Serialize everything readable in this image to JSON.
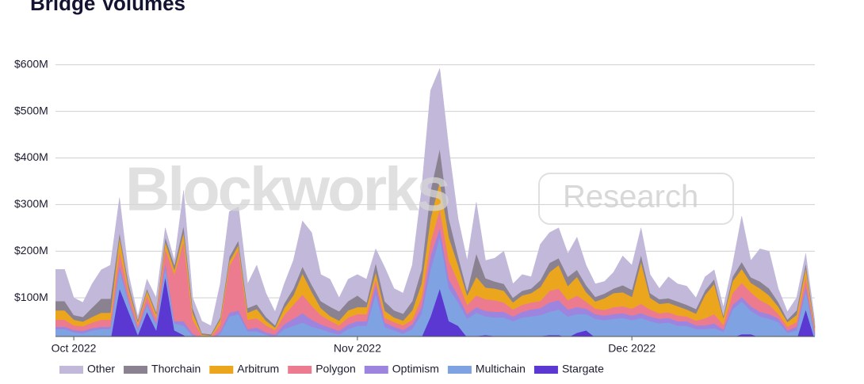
{
  "chart_data": {
    "type": "stacked_area",
    "title": "Bridge Volumes",
    "watermark": [
      "Blockworks",
      "Research"
    ],
    "categories": [
      null,
      null,
      "Oct 2022",
      null,
      null,
      null,
      null,
      null,
      null,
      null,
      null,
      null,
      null,
      null,
      null,
      null,
      null,
      null,
      null,
      null,
      null,
      null,
      null,
      null,
      null,
      null,
      null,
      null,
      null,
      null,
      null,
      null,
      null,
      "Nov 2022",
      null,
      null,
      null,
      null,
      null,
      null,
      null,
      null,
      null,
      null,
      null,
      null,
      null,
      null,
      null,
      null,
      null,
      null,
      null,
      null,
      null,
      null,
      null,
      null,
      null,
      null,
      null,
      null,
      null,
      "Dec 2022",
      null,
      null,
      null,
      null,
      null,
      null,
      null,
      null,
      null,
      null,
      null,
      null,
      null,
      null,
      null,
      null,
      null,
      null,
      null,
      null
    ],
    "ylim": [
      17,
      620
    ],
    "yticks": [
      {
        "value": 100,
        "label": "$100M"
      },
      {
        "value": 200,
        "label": "$200M"
      },
      {
        "value": 300,
        "label": "$300M"
      },
      {
        "value": 400,
        "label": "$400M"
      },
      {
        "value": 500,
        "label": "$500M"
      },
      {
        "value": 600,
        "label": "$600M"
      }
    ],
    "grid": true,
    "legend": "bottom",
    "series": [
      {
        "name": "Other",
        "color": "#c2b8da",
        "values": [
          68,
          68,
          37,
          31,
          51,
          62,
          72,
          75,
          20,
          7,
          20,
          30,
          20,
          10,
          75,
          22,
          26,
          18,
          72,
          97,
          72,
          52,
          84,
          51,
          29,
          42,
          60,
          98,
          112,
          57,
          59,
          29,
          47,
          45,
          50,
          30,
          73,
          47,
          44,
          77,
          170,
          215,
          172,
          150,
          80,
          65,
          110,
          38,
          50,
          70,
          30,
          35,
          25,
          77,
          65,
          65,
          50,
          70,
          43,
          28,
          26,
          35,
          63,
          53,
          58,
          40,
          23,
          46,
          38,
          40,
          24,
          29,
          20,
          18,
          25,
          98,
          36,
          70,
          80,
          29,
          17,
          27,
          20,
          10
        ]
      },
      {
        "name": "Thorchain",
        "color": "#8b8291",
        "values": [
          20,
          20,
          10,
          10,
          20,
          30,
          30,
          10,
          10,
          5,
          5,
          5,
          10,
          10,
          15,
          10,
          3,
          3,
          5,
          10,
          10,
          10,
          10,
          8,
          5,
          10,
          15,
          15,
          15,
          15,
          20,
          20,
          20,
          25,
          10,
          20,
          20,
          15,
          15,
          20,
          30,
          60,
          70,
          40,
          20,
          10,
          50,
          20,
          15,
          15,
          10,
          10,
          10,
          15,
          20,
          15,
          20,
          15,
          15,
          10,
          10,
          10,
          15,
          15,
          15,
          10,
          10,
          10,
          10,
          10,
          10,
          10,
          10,
          5,
          10,
          15,
          12,
          15,
          15,
          10,
          5,
          10,
          10,
          5
        ]
      },
      {
        "name": "Arbitrum",
        "color": "#eba61e",
        "values": [
          20,
          20,
          12,
          10,
          12,
          15,
          15,
          30,
          10,
          5,
          10,
          8,
          15,
          10,
          20,
          15,
          3,
          3,
          10,
          10,
          10,
          15,
          20,
          10,
          5,
          15,
          20,
          45,
          30,
          15,
          10,
          10,
          15,
          15,
          15,
          15,
          15,
          10,
          10,
          20,
          30,
          50,
          60,
          50,
          35,
          20,
          40,
          25,
          25,
          25,
          15,
          20,
          20,
          30,
          40,
          50,
          30,
          40,
          20,
          15,
          25,
          30,
          30,
          25,
          90,
          25,
          20,
          20,
          20,
          15,
          15,
          50,
          65,
          15,
          25,
          30,
          20,
          25,
          20,
          15,
          10,
          15,
          20,
          5
        ]
      },
      {
        "name": "Polygon",
        "color": "#ec7b8f",
        "values": [
          15,
          15,
          10,
          10,
          12,
          15,
          15,
          30,
          15,
          8,
          15,
          10,
          30,
          100,
          170,
          30,
          5,
          3,
          15,
          100,
          130,
          20,
          20,
          15,
          10,
          20,
          30,
          40,
          30,
          20,
          15,
          12,
          15,
          15,
          15,
          12,
          10,
          10,
          10,
          10,
          20,
          30,
          40,
          40,
          30,
          20,
          25,
          25,
          25,
          20,
          15,
          15,
          15,
          15,
          25,
          25,
          20,
          25,
          15,
          12,
          12,
          15,
          15,
          15,
          20,
          15,
          12,
          12,
          12,
          10,
          10,
          15,
          20,
          10,
          25,
          30,
          30,
          25,
          20,
          10,
          8,
          10,
          20,
          5
        ]
      },
      {
        "name": "Optimism",
        "color": "#9d84df",
        "values": [
          5,
          5,
          5,
          5,
          5,
          5,
          5,
          10,
          5,
          5,
          5,
          5,
          10,
          5,
          10,
          5,
          3,
          3,
          5,
          8,
          8,
          5,
          8,
          5,
          5,
          10,
          15,
          20,
          15,
          10,
          10,
          8,
          10,
          10,
          10,
          20,
          10,
          8,
          8,
          10,
          15,
          30,
          20,
          20,
          15,
          10,
          12,
          12,
          12,
          12,
          10,
          12,
          15,
          15,
          20,
          20,
          15,
          15,
          12,
          10,
          10,
          10,
          10,
          10,
          10,
          10,
          10,
          10,
          10,
          10,
          8,
          8,
          10,
          5,
          10,
          10,
          10,
          10,
          10,
          8,
          5,
          8,
          10,
          5
        ]
      },
      {
        "name": "Multichain",
        "color": "#7fa2e2",
        "values": [
          25,
          25,
          20,
          18,
          22,
          25,
          25,
          40,
          20,
          10,
          15,
          12,
          20,
          15,
          20,
          10,
          5,
          5,
          15,
          50,
          55,
          20,
          20,
          15,
          10,
          25,
          30,
          35,
          30,
          25,
          20,
          15,
          25,
          30,
          30,
          100,
          25,
          20,
          15,
          25,
          50,
          100,
          110,
          70,
          50,
          40,
          50,
          40,
          40,
          40,
          35,
          40,
          45,
          45,
          50,
          55,
          45,
          40,
          35,
          40,
          40,
          45,
          45,
          40,
          45,
          40,
          35,
          35,
          30,
          30,
          25,
          25,
          25,
          15,
          60,
          70,
          50,
          45,
          40,
          30,
          15,
          20,
          40,
          10
        ]
      },
      {
        "name": "Stargate",
        "color": "#5b38d1",
        "values": [
          8,
          8,
          6,
          6,
          8,
          8,
          8,
          120,
          70,
          20,
          70,
          30,
          145,
          30,
          20,
          8,
          5,
          5,
          8,
          10,
          10,
          8,
          8,
          6,
          6,
          8,
          10,
          12,
          8,
          8,
          6,
          6,
          8,
          10,
          10,
          8,
          12,
          10,
          8,
          8,
          15,
          60,
          120,
          50,
          40,
          15,
          18,
          20,
          18,
          18,
          15,
          18,
          15,
          18,
          20,
          20,
          15,
          25,
          30,
          15,
          12,
          10,
          12,
          12,
          12,
          10,
          10,
          12,
          10,
          10,
          8,
          8,
          10,
          12,
          15,
          22,
          22,
          15,
          15,
          18,
          10,
          10,
          75,
          10
        ]
      }
    ]
  }
}
